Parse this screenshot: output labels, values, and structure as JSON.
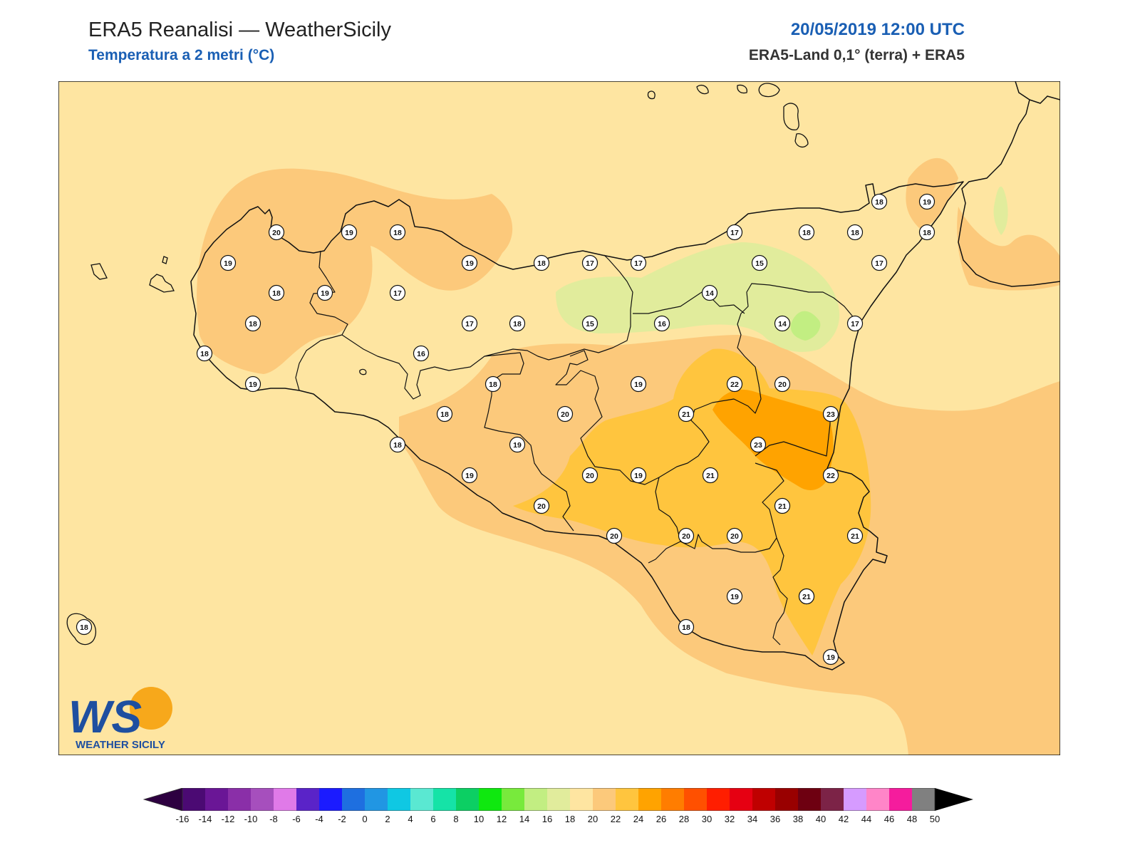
{
  "header": {
    "title": "ERA5 Reanalisi — WeatherSicily",
    "subtitle": "Temperatura a 2 metri (°C)",
    "datetime": "20/05/2019 12:00 UTC",
    "source": "ERA5-Land 0,1° (terra) + ERA5"
  },
  "logo": {
    "letters": "WS",
    "name": "WEATHER SICILY"
  },
  "stations": [
    20,
    19,
    18,
    19,
    18,
    19,
    17,
    19,
    18,
    17,
    16,
    18,
    18,
    17,
    18,
    19,
    17,
    18,
    15,
    17,
    17,
    18,
    18,
    16,
    14,
    14,
    15,
    17,
    18,
    19,
    18,
    22,
    20,
    23,
    21,
    23,
    22,
    21,
    20,
    19,
    21,
    20,
    21,
    20,
    20,
    21,
    19,
    18,
    21,
    19,
    18,
    19,
    18,
    20,
    19,
    20,
    18,
    19
  ],
  "colorbar": {
    "ticks": [
      "-16",
      "-14",
      "-12",
      "-10",
      "-8",
      "-6",
      "-4",
      "-2",
      "0",
      "2",
      "4",
      "6",
      "8",
      "10",
      "12",
      "14",
      "16",
      "18",
      "20",
      "22",
      "24",
      "26",
      "28",
      "30",
      "32",
      "34",
      "36",
      "38",
      "40",
      "42",
      "44",
      "46",
      "48",
      "50"
    ],
    "colors": [
      "#2d0040",
      "#4b0a73",
      "#6a1696",
      "#8a2fa8",
      "#a64fbd",
      "#e07ae8",
      "#5a23c8",
      "#1b1bff",
      "#1e6fe0",
      "#2196e3",
      "#0fc8e3",
      "#5ae8d2",
      "#15e3a7",
      "#0ccf63",
      "#0fe80f",
      "#78ea3c",
      "#c2ee82",
      "#e1ec9c",
      "#fee5a1",
      "#fcc97b",
      "#ffc53e",
      "#ffa300",
      "#ff7d00",
      "#ff5000",
      "#ff1e00",
      "#e60012",
      "#bf0000",
      "#990000",
      "#6e0011",
      "#7c2347",
      "#d69bff",
      "#ff85c8",
      "#f51c9d",
      "#808080",
      "#3a3a3a"
    ],
    "legend_colors": {
      "16-18": "#fee5a1",
      "18-20": "#fcc97b",
      "20-22": "#ffc53e",
      "22-24": "#ffa300",
      "14-16": "#e1ec9c",
      "12-14": "#c2ee82"
    }
  }
}
